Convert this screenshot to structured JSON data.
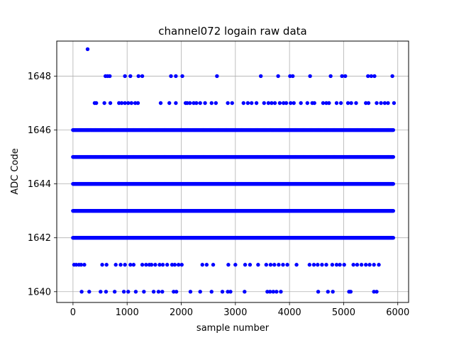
{
  "chart_data": {
    "type": "scatter",
    "title": "channel072 logain raw data",
    "xlabel": "sample number",
    "ylabel": "ADC Code",
    "xlim": [
      -300,
      6200
    ],
    "ylim": [
      1639.6,
      1649.3
    ],
    "xticks": [
      0,
      1000,
      2000,
      3000,
      4000,
      5000,
      6000
    ],
    "xtick_labels": [
      "0",
      "1000",
      "2000",
      "3000",
      "4000",
      "5000",
      "6000"
    ],
    "yticks": [
      1640,
      1642,
      1644,
      1646,
      1648
    ],
    "ytick_labels": [
      "1640",
      "1642",
      "1644",
      "1646",
      "1648"
    ],
    "grid": true,
    "marker_color": "#0000ff",
    "sample_range": [
      0,
      5920
    ],
    "levels": [
      {
        "y": 1649,
        "x": [
          270
        ]
      },
      {
        "y": 1648,
        "x": [
          600,
          640,
          680,
          960,
          1060,
          1210,
          1280,
          1810,
          1900,
          2020,
          2660,
          3470,
          3790,
          4010,
          4060,
          4380,
          4760,
          4970,
          5030,
          5450,
          5510,
          5570,
          5900
        ]
      },
      {
        "y": 1647,
        "x": [
          400,
          430,
          580,
          690,
          850,
          900,
          960,
          1020,
          1080,
          1150,
          1200,
          1620,
          1780,
          1900,
          2080,
          2110,
          2160,
          2230,
          2280,
          2350,
          2440,
          2560,
          2640,
          2860,
          2940,
          3150,
          3230,
          3300,
          3390,
          3530,
          3610,
          3670,
          3730,
          3820,
          3890,
          3940,
          4020,
          4080,
          4210,
          4330,
          4420,
          4460,
          4620,
          4680,
          4730,
          4870,
          4950,
          5080,
          5140,
          5230,
          5410,
          5460,
          5610,
          5690,
          5760,
          5820,
          5930
        ]
      },
      {
        "y": 1641,
        "x": [
          20,
          60,
          110,
          150,
          210,
          540,
          620,
          790,
          880,
          960,
          1060,
          1120,
          1280,
          1350,
          1410,
          1450,
          1520,
          1600,
          1660,
          1740,
          1830,
          1880,
          1950,
          2010,
          2390,
          2470,
          2590,
          2870,
          3000,
          3180,
          3270,
          3420,
          3570,
          3650,
          3720,
          3800,
          3880,
          3960,
          4130,
          4370,
          4450,
          4520,
          4600,
          4680,
          4790,
          4870,
          4930,
          5010,
          5180,
          5250,
          5330,
          5410,
          5480,
          5560,
          5650
        ]
      },
      {
        "y": 1640,
        "x": [
          160,
          300,
          510,
          610,
          770,
          940,
          1020,
          1160,
          1310,
          1490,
          1580,
          1650,
          1860,
          1910,
          2170,
          2350,
          2560,
          2760,
          2860,
          2910,
          3170,
          3590,
          3640,
          3700,
          3760,
          3840,
          4530,
          4710,
          4800,
          5100,
          5130,
          5560,
          5610
        ]
      }
    ],
    "dense_levels": [
      1642,
      1643,
      1644,
      1645,
      1646
    ]
  }
}
